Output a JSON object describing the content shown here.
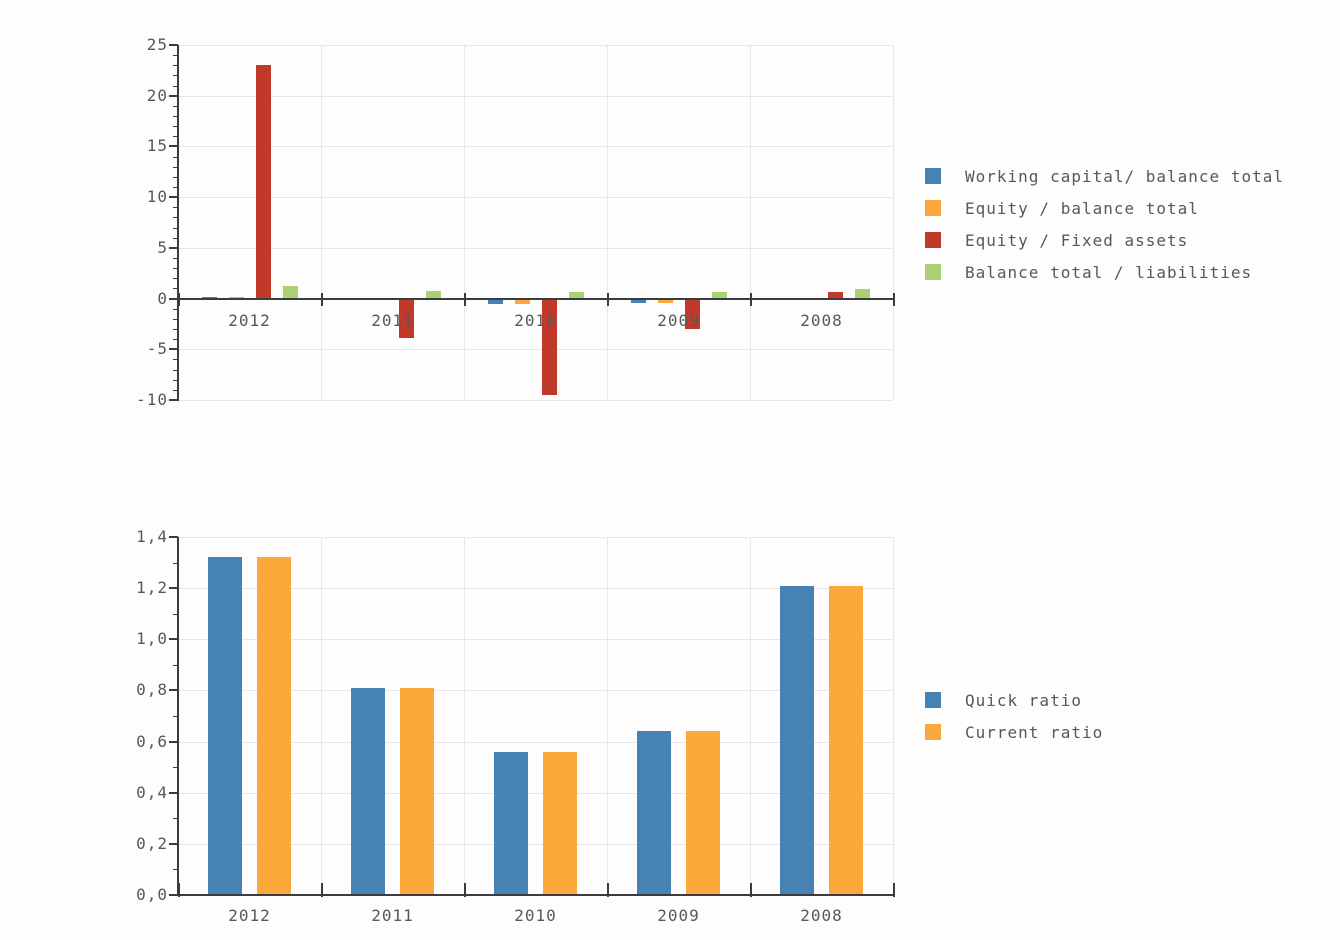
{
  "colors": {
    "background": "#fdfdfd",
    "axis": "#3c3c3c",
    "grid": "#e7e7e7",
    "text": "#585858",
    "series_blue": "#4682b4",
    "series_orange": "#fba93a",
    "series_red": "#c0392b",
    "series_green": "#abd173"
  },
  "chart_data": [
    {
      "type": "bar",
      "name": "financial-structure-ratios",
      "title": "",
      "xlabel": "",
      "ylabel": "",
      "categories": [
        "2012",
        "2011",
        "2010",
        "2009",
        "2008"
      ],
      "series": [
        {
          "name": "Working capital/ balance total",
          "color": "#4682b4",
          "values": [
            0.2,
            0.0,
            -0.45,
            -0.35,
            0.0
          ]
        },
        {
          "name": "Equity / balance total",
          "color": "#fba93a",
          "values": [
            0.15,
            0.0,
            -0.45,
            -0.4,
            0.0
          ]
        },
        {
          "name": "Equity / Fixed assets",
          "color": "#c0392b",
          "values": [
            23.0,
            -3.8,
            -9.5,
            -3.0,
            0.6
          ]
        },
        {
          "name": "Balance total / liabilities",
          "color": "#abd173",
          "values": [
            1.25,
            0.75,
            0.6,
            0.6,
            0.9
          ]
        }
      ],
      "ylim": [
        -10,
        25
      ],
      "yticks": [
        {
          "v": 25,
          "l": "25"
        },
        {
          "v": 20,
          "l": "20"
        },
        {
          "v": 15,
          "l": "15"
        },
        {
          "v": 10,
          "l": "10"
        },
        {
          "v": 5,
          "l": "5"
        },
        {
          "v": 0,
          "l": "0"
        },
        {
          "v": -5,
          "l": "-5"
        },
        {
          "v": -10,
          "l": "-10"
        }
      ],
      "minor_step": 1,
      "grid": true,
      "legend_position": "right"
    },
    {
      "type": "bar",
      "name": "liquidity-ratios",
      "title": "",
      "xlabel": "",
      "ylabel": "",
      "categories": [
        "2012",
        "2011",
        "2010",
        "2009",
        "2008"
      ],
      "series": [
        {
          "name": "Quick ratio",
          "color": "#4682b4",
          "values": [
            1.32,
            0.81,
            0.56,
            0.64,
            1.21
          ]
        },
        {
          "name": "Current ratio",
          "color": "#fba93a",
          "values": [
            1.32,
            0.81,
            0.56,
            0.64,
            1.21
          ]
        }
      ],
      "ylim": [
        0,
        1.4
      ],
      "yticks": [
        {
          "v": 1.4,
          "l": "1,4"
        },
        {
          "v": 1.2,
          "l": "1,2"
        },
        {
          "v": 1.0,
          "l": "1,0"
        },
        {
          "v": 0.8,
          "l": "0,8"
        },
        {
          "v": 0.6,
          "l": "0,6"
        },
        {
          "v": 0.4,
          "l": "0,4"
        },
        {
          "v": 0.2,
          "l": "0,2"
        },
        {
          "v": 0.0,
          "l": "0,0"
        }
      ],
      "minor_step": 0.1,
      "grid": true,
      "legend_position": "right"
    }
  ]
}
